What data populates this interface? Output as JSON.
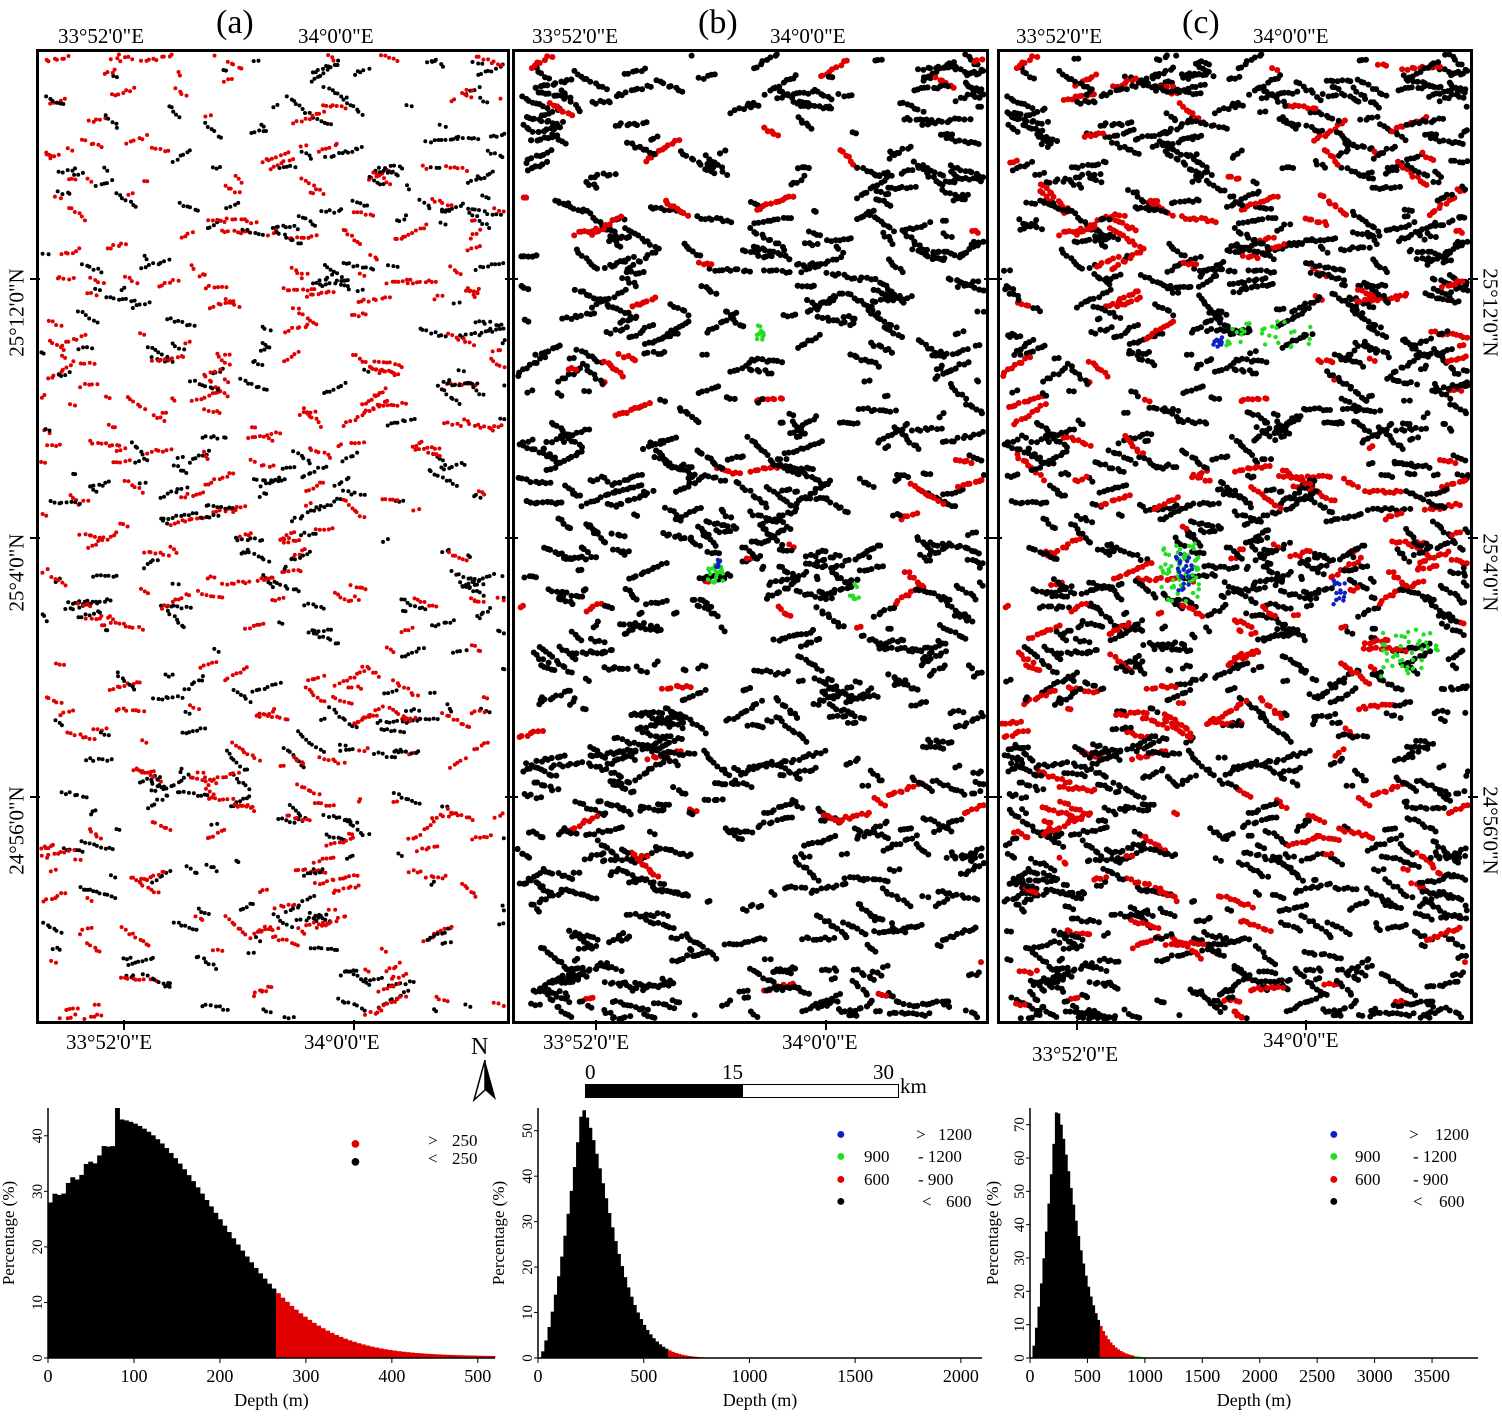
{
  "panels": [
    {
      "label": "(a)",
      "top_lon": [
        "33°52'0\"E",
        "34°0'0\"E"
      ],
      "bottom_lon": [
        "33°52'0\"E",
        "34°0'0\"E"
      ],
      "left_lat": [
        "25°12'0\"N",
        "25°4'0\"N",
        "24°56'0\"N"
      ]
    },
    {
      "label": "(b)",
      "top_lon": [
        "33°52'0\"E",
        "34°0'0\"E"
      ],
      "bottom_lon": [
        "33°52'0\"E",
        "34°0'0\"E"
      ]
    },
    {
      "label": "(c)",
      "top_lon": [
        "33°52'0\"E",
        "34°0'0\"E"
      ],
      "bottom_lon": [
        "33°52'0\"E",
        "34°0'0\"E"
      ],
      "right_lat": [
        "25°12'0\"N",
        "25°4'0\"N",
        "24°56'0\"N"
      ]
    }
  ],
  "north_arrow": {
    "label": "N"
  },
  "scale_bar": {
    "ticks": [
      "0",
      "15",
      "30"
    ],
    "unit": "km"
  },
  "colors": {
    "black": "#000000",
    "red": "#e00000",
    "green": "#22dd22",
    "blue": "#1020c0"
  },
  "histograms": [
    {
      "ylabel": "Percentage (%)",
      "xlabel": "Depth (m)",
      "xticks": [
        "0",
        "100",
        "200",
        "300",
        "400",
        "500"
      ],
      "yticks": [
        "0",
        "10",
        "20",
        "30",
        "40"
      ],
      "legend": [
        {
          "color": "red",
          "symbol": ">",
          "text": "250"
        },
        {
          "color": "black",
          "symbol": "<",
          "text": "250"
        }
      ]
    },
    {
      "ylabel": "Percentage (%)",
      "xlabel": "Depth (m)",
      "xticks": [
        "0",
        "500",
        "1000",
        "1500",
        "2000"
      ],
      "yticks": [
        "0",
        "10",
        "20",
        "30",
        "40",
        "50"
      ],
      "legend": [
        {
          "color": "blue",
          "symbol": ">",
          "text": "1200"
        },
        {
          "color": "green",
          "symbol": "900",
          "text": "-  1200"
        },
        {
          "color": "red",
          "symbol": "600",
          "text": "-  900"
        },
        {
          "color": "black",
          "symbol": "<",
          "text": "600"
        }
      ]
    },
    {
      "ylabel": "Percentage (%)",
      "xlabel": "Depth (m)",
      "xticks": [
        "0",
        "500",
        "1000",
        "1500",
        "2000",
        "2500",
        "3000",
        "3500"
      ],
      "yticks": [
        "0",
        "10",
        "20",
        "30",
        "40",
        "50",
        "60",
        "70"
      ],
      "legend": [
        {
          "color": "blue",
          "symbol": ">",
          "text": "1200"
        },
        {
          "color": "green",
          "symbol": "900",
          "text": "-  1200"
        },
        {
          "color": "red",
          "symbol": "600",
          "text": "-  900"
        },
        {
          "color": "black",
          "symbol": "<",
          "text": "600"
        }
      ]
    }
  ]
}
